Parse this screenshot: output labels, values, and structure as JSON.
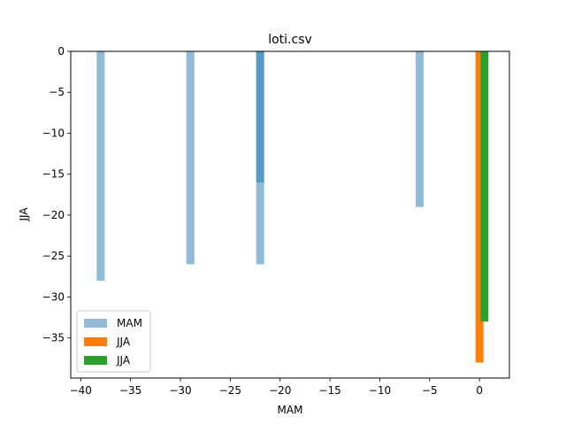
{
  "chart_data": {
    "type": "bar",
    "title": "loti.csv",
    "xlabel": "MAM",
    "ylabel": "JJA",
    "xlim": [
      -41,
      3
    ],
    "ylim": [
      -39.9,
      0
    ],
    "xticks": [
      -40,
      -35,
      -30,
      -25,
      -20,
      -15,
      -10,
      -5,
      0
    ],
    "yticks": [
      0,
      -5,
      -10,
      -15,
      -20,
      -25,
      -30,
      -35
    ],
    "legend_position": "lower-left",
    "grid": false,
    "series": [
      {
        "name": "MAM",
        "color": "#1f77b4",
        "opacity": 0.5,
        "bars": [
          {
            "x": -38,
            "width": 0.8,
            "value": -28
          },
          {
            "x": -29,
            "width": 0.8,
            "value": -26
          },
          {
            "x": -22,
            "width": 0.8,
            "value": -26
          },
          {
            "x": -22,
            "width": 0.8,
            "value": -16
          },
          {
            "x": -6,
            "width": 0.8,
            "value": -19
          }
        ]
      },
      {
        "name": "JJA",
        "color": "#ff7f0e",
        "opacity": 1,
        "bars": [
          {
            "x": 0,
            "width": 0.8,
            "value": -38
          }
        ]
      },
      {
        "name": "JJA",
        "color": "#2ca02c",
        "opacity": 1,
        "bars": [
          {
            "x": 0.5,
            "width": 0.8,
            "value": -33
          }
        ]
      }
    ]
  }
}
